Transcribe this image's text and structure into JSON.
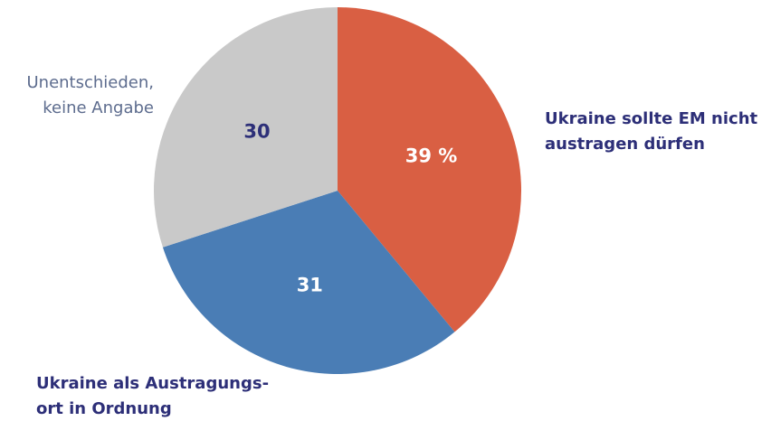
{
  "chart_data": {
    "type": "pie",
    "categories": [
      [
        "Ukraine sollte EM nicht",
        "austragen dürfen"
      ],
      [
        "Ukraine als Austragungs-",
        "ort in Ordnung"
      ],
      [
        "Unentschieden,",
        "keine Angabe"
      ]
    ],
    "values": [
      39,
      31,
      30
    ],
    "value_labels": [
      "39 %",
      "31",
      "30"
    ],
    "colors": [
      "#d95f43",
      "#4a7db5",
      "#c9c9c9"
    ]
  }
}
